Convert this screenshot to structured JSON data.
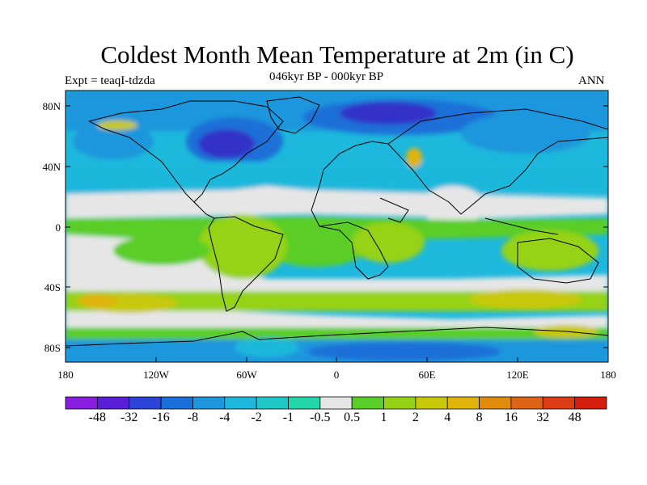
{
  "title": "Coldest Month Mean Temperature at 2m (in C)",
  "left_label": "Expt = teaqI-tdzda",
  "center_label": "046kyr BP - 000kyr BP",
  "right_label": "ANN",
  "y_ticks": [
    "80N",
    "40N",
    "0",
    "40S",
    "80S"
  ],
  "x_ticks": [
    "180",
    "120W",
    "60W",
    "0",
    "60E",
    "120E",
    "180"
  ],
  "colorbar": {
    "colors": [
      "#8a1ee0",
      "#5a1ed6",
      "#2c45d8",
      "#1a6fd8",
      "#1e96dc",
      "#1eb8dc",
      "#1ec8c8",
      "#22d8a8",
      "#e6e6e6",
      "#5acd28",
      "#96d214",
      "#c8c80a",
      "#e0b40a",
      "#e08c0a",
      "#dc6414",
      "#dc3c14",
      "#d21e0a"
    ],
    "labels": [
      "-48",
      "-32",
      "-16",
      "-8",
      "-4",
      "-2",
      "-1",
      "-0.5",
      "0.5",
      "1",
      "2",
      "4",
      "8",
      "16",
      "32",
      "48"
    ]
  },
  "palette": {
    "deep_blue": "#3232c8",
    "blue": "#1a6fd8",
    "mid_blue": "#1e96dc",
    "cyan": "#1eb8dc",
    "teal": "#22d8a8",
    "grey": "#e6e6e6",
    "green": "#5acd28",
    "lime": "#96d214",
    "olive": "#c8c80a",
    "orange": "#e0b40a"
  }
}
